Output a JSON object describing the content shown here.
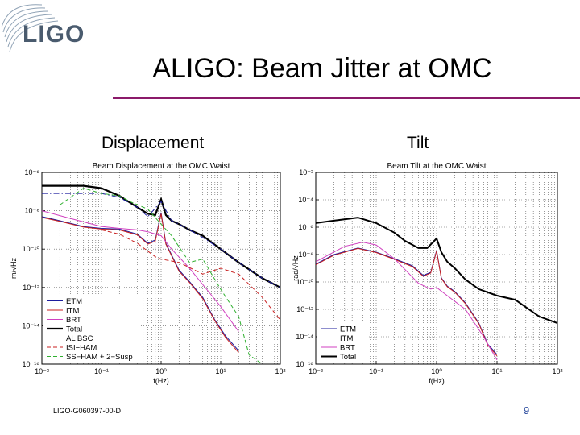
{
  "slide": {
    "logo_text": "LIGO",
    "title": "ALIGO: Beam Jitter at OMC",
    "subtitle_left": "Displacement",
    "subtitle_right": "Tilt",
    "footer": "LIGO-G060397-00-D",
    "page_number": "9",
    "accent_color": "#8b1a6a"
  },
  "chart_data": [
    {
      "type": "line",
      "title": "Beam Displacement at the OMC Waist",
      "xlabel": "f(Hz)",
      "ylabel": "m/√Hz",
      "xscale": "log",
      "yscale": "log",
      "xlim": [
        0.01,
        100
      ],
      "ylim": [
        1e-16,
        1e-06
      ],
      "xticks": [
        0.01,
        0.1,
        1,
        10,
        100
      ],
      "xtick_labels": [
        "10⁻²",
        "10⁻¹",
        "10⁰",
        "10¹",
        "10²"
      ],
      "yticks": [
        1e-16,
        1e-14,
        1e-12,
        1e-10,
        1e-08,
        1e-06
      ],
      "ytick_labels": [
        "10⁻¹⁶",
        "10⁻¹⁴",
        "10⁻¹²",
        "10⁻¹⁰",
        "10⁻⁸",
        "10⁻⁶"
      ],
      "grid": true,
      "legend_position": "bottom-left",
      "series": [
        {
          "name": "ETM",
          "color": "#1c1c9e",
          "style": "solid",
          "width": 1,
          "x": [
            0.01,
            0.02,
            0.05,
            0.1,
            0.2,
            0.4,
            0.6,
            0.8,
            1,
            1.2,
            1.5,
            2,
            3,
            5,
            8,
            12,
            20
          ],
          "y": [
            5e-09,
            3e-09,
            1.5e-09,
            1.2e-09,
            1.1e-09,
            6e-10,
            2e-10,
            3e-10,
            8e-09,
            2e-10,
            5e-11,
            8e-12,
            2e-12,
            3e-13,
            2e-14,
            3e-15,
            5e-16
          ]
        },
        {
          "name": "ITM",
          "color": "#c82020",
          "style": "solid",
          "width": 1,
          "x": [
            0.01,
            0.02,
            0.05,
            0.1,
            0.2,
            0.4,
            0.6,
            0.8,
            1,
            1.2,
            1.5,
            2,
            3,
            5,
            8,
            12,
            20
          ],
          "y": [
            4.5e-09,
            2.8e-09,
            1.4e-09,
            1.1e-09,
            1e-09,
            5.5e-10,
            1.8e-10,
            2.6e-10,
            7e-09,
            1.8e-10,
            4.5e-11,
            7e-12,
            1.8e-12,
            2.6e-13,
            1.8e-14,
            2.5e-15,
            4e-16
          ]
        },
        {
          "name": "BRT",
          "color": "#d040c0",
          "style": "solid",
          "width": 1,
          "x": [
            0.01,
            0.03,
            0.1,
            0.2,
            0.4,
            0.6,
            1,
            1.5,
            3,
            10,
            20
          ],
          "y": [
            1e-08,
            4e-09,
            1.5e-09,
            1.2e-09,
            1e-09,
            8e-10,
            5e-10,
            1e-10,
            1e-11,
            1e-13,
            5e-15
          ]
        },
        {
          "name": "Total",
          "color": "#000000",
          "style": "solid",
          "width": 2.2,
          "x": [
            0.01,
            0.05,
            0.1,
            0.2,
            0.4,
            0.6,
            0.8,
            1,
            1.2,
            1.5,
            2,
            3,
            5,
            10,
            20,
            50,
            100
          ],
          "y": [
            2e-07,
            2e-07,
            1.5e-07,
            6e-08,
            1.5e-08,
            7e-09,
            6e-09,
            4e-08,
            6e-09,
            3e-09,
            2e-09,
            1e-09,
            5e-10,
            1e-10,
            2e-11,
            3e-12,
            1e-12
          ]
        },
        {
          "name": "AL BSC",
          "color": "#1c1c9e",
          "style": "dashdot",
          "width": 1,
          "x": [
            0.01,
            0.1,
            0.2,
            0.4,
            0.6,
            1,
            1.5,
            2,
            3,
            5,
            10,
            20,
            50,
            100
          ],
          "y": [
            8e-08,
            8e-08,
            5e-08,
            1.5e-08,
            5e-09,
            3e-08,
            3e-09,
            2e-09,
            1e-09,
            4e-10,
            1e-10,
            2e-11,
            3e-12,
            1e-12
          ]
        },
        {
          "name": "ISI−HAM",
          "color": "#c82020",
          "style": "dashed",
          "width": 1,
          "x": [
            0.1,
            0.2,
            0.4,
            0.8,
            1,
            2,
            5,
            10,
            20,
            50,
            100
          ],
          "y": [
            1e-09,
            6e-10,
            2e-10,
            4e-11,
            3e-11,
            2e-11,
            5e-12,
            1e-11,
            5e-12,
            3e-13,
            2e-14
          ]
        },
        {
          "name": "SS−HAM + 2−Susp",
          "color": "#30b030",
          "style": "dashed",
          "width": 1,
          "x": [
            0.02,
            0.05,
            0.1,
            0.2,
            0.3,
            0.6,
            1,
            1.5,
            3,
            5,
            10,
            20,
            30,
            50
          ],
          "y": [
            2e-08,
            1.5e-07,
            8e-08,
            6e-08,
            3e-08,
            1.2e-08,
            2e-09,
            5e-10,
            2e-11,
            3e-11,
            8e-13,
            3e-14,
            3e-16,
            1e-16
          ]
        }
      ]
    },
    {
      "type": "line",
      "title": "Beam Tilt at the OMC Waist",
      "xlabel": "f(Hz)",
      "ylabel": "rad/√Hz",
      "xscale": "log",
      "yscale": "log",
      "xlim": [
        0.01,
        100
      ],
      "ylim": [
        1e-16,
        0.01
      ],
      "xticks": [
        0.01,
        0.1,
        1,
        10,
        100
      ],
      "xtick_labels": [
        "10⁻²",
        "10⁻¹",
        "10⁰",
        "10¹",
        "10²"
      ],
      "yticks": [
        1e-16,
        1e-14,
        1e-12,
        1e-10,
        1e-08,
        1e-06,
        0.0001,
        0.01
      ],
      "ytick_labels": [
        "10⁻¹⁶",
        "10⁻¹⁴",
        "10⁻¹²",
        "10⁻¹⁰",
        "10⁻⁸",
        "10⁻⁶",
        "10⁻⁴",
        "10⁻²"
      ],
      "grid": true,
      "legend_position": "bottom-left",
      "series": [
        {
          "name": "ETM",
          "color": "#1c1c9e",
          "style": "solid",
          "width": 1,
          "x": [
            0.01,
            0.02,
            0.05,
            0.1,
            0.2,
            0.4,
            0.6,
            0.8,
            1,
            1.2,
            1.5,
            2,
            3,
            5,
            7,
            10
          ],
          "y": [
            2e-09,
            1e-08,
            3e-08,
            1.5e-08,
            5e-09,
            1.5e-09,
            3e-10,
            5e-10,
            2e-08,
            2e-10,
            5e-11,
            2e-11,
            3e-12,
            1e-13,
            3e-15,
            5e-16
          ]
        },
        {
          "name": "ITM",
          "color": "#c82020",
          "style": "solid",
          "width": 1,
          "x": [
            0.01,
            0.02,
            0.05,
            0.1,
            0.2,
            0.4,
            0.6,
            0.8,
            1,
            1.2,
            1.5,
            2,
            3,
            5,
            7,
            10
          ],
          "y": [
            1.8e-09,
            9e-09,
            2.8e-08,
            1.4e-08,
            4.5e-09,
            1.3e-09,
            2.6e-10,
            4.5e-10,
            1.8e-08,
            1.8e-10,
            4.5e-11,
            1.8e-11,
            2.6e-12,
            9e-14,
            2.5e-15,
            4e-16
          ]
        },
        {
          "name": "BRT",
          "color": "#d040c0",
          "style": "solid",
          "width": 1,
          "x": [
            0.01,
            0.03,
            0.06,
            0.1,
            0.2,
            0.5,
            0.8,
            1,
            1.5,
            3,
            6,
            10
          ],
          "y": [
            3e-09,
            4e-08,
            8e-08,
            5e-08,
            5e-09,
            8e-11,
            3e-11,
            4e-11,
            1e-11,
            1e-12,
            1e-14,
            2e-16
          ]
        },
        {
          "name": "Total",
          "color": "#000000",
          "style": "solid",
          "width": 2,
          "x": [
            0.01,
            0.02,
            0.05,
            0.1,
            0.2,
            0.3,
            0.5,
            0.7,
            1,
            1.2,
            1.5,
            2,
            3,
            5,
            10,
            20,
            50,
            100
          ],
          "y": [
            2e-06,
            3e-06,
            5e-06,
            2e-06,
            4e-07,
            1e-07,
            3e-08,
            3e-08,
            1.5e-07,
            1.5e-08,
            3e-09,
            1e-09,
            1.5e-10,
            3e-11,
            1e-11,
            5e-12,
            3e-13,
            1e-13
          ]
        }
      ]
    }
  ]
}
